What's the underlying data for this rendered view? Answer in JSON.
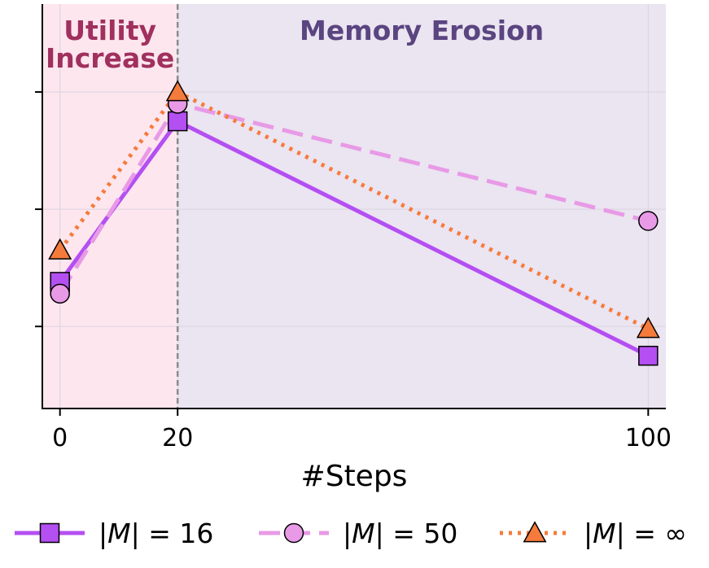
{
  "chart_data": {
    "type": "line",
    "xlabel": "#Steps",
    "ylabel": "",
    "x": [
      0,
      20,
      100
    ],
    "xticks": [
      0,
      20,
      100
    ],
    "xlim": [
      -3,
      103
    ],
    "ylim": [
      0,
      3.45
    ],
    "yticks": [
      0.7,
      1.7,
      2.7
    ],
    "ytick_labels_shown": false,
    "grid": true,
    "regions": [
      {
        "label_lines": [
          "Utility",
          "Increase"
        ],
        "x_range": [
          -3,
          20
        ],
        "color": "#fde6ee",
        "text_color": "#a0305e"
      },
      {
        "label_lines": [
          "Memory Erosion"
        ],
        "x_range": [
          20,
          103
        ],
        "color": "#ebe4f1",
        "text_color": "#5a4580"
      }
    ],
    "divider_x": 20,
    "series": [
      {
        "name": "|M| = 16",
        "label_parts": [
          "|",
          "M",
          "| = 16"
        ],
        "values": [
          1.08,
          2.45,
          0.45
        ],
        "color": "#b44ff2",
        "dash": "solid",
        "marker": "square"
      },
      {
        "name": "|M| = 50",
        "label_parts": [
          "|",
          "M",
          "| = 50"
        ],
        "values": [
          0.98,
          2.6,
          1.6
        ],
        "color": "#e89ae6",
        "dash": "dashed",
        "marker": "circle"
      },
      {
        "name": "|M| = ∞",
        "label_parts": [
          "|",
          "M",
          "| = ∞"
        ],
        "values": [
          1.35,
          2.7,
          0.68
        ],
        "color": "#f57b3c",
        "dash": "dotted",
        "marker": "triangle"
      }
    ],
    "legend_position": "bottom"
  }
}
